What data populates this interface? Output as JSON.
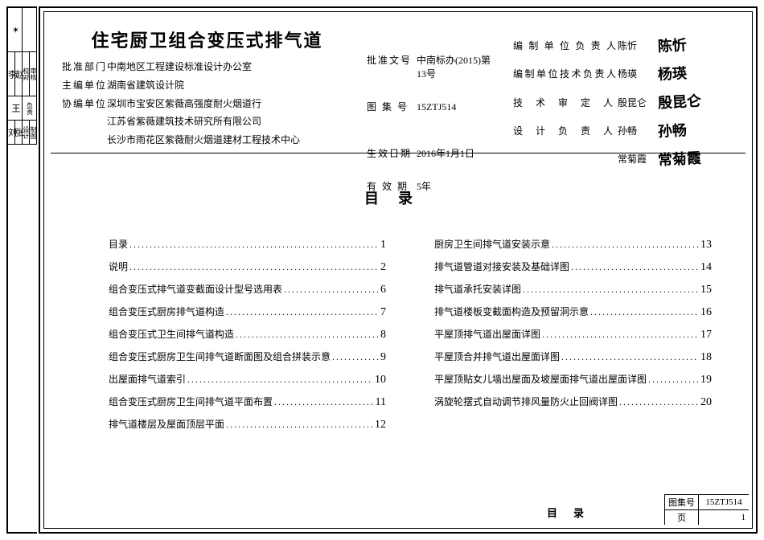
{
  "title": "住宅厨卫组合变压式排气道",
  "left_tabs": [
    {
      "sig": "杨",
      "label": "审定"
    },
    {
      "sig": "李",
      "label": "校对审核"
    },
    {
      "sig": "王",
      "label": "设计负责"
    },
    {
      "sig": "刘",
      "label": "设计制图"
    }
  ],
  "header_left": [
    {
      "label": "批准部门",
      "value": "中南地区工程建设标准设计办公室"
    },
    {
      "label": "主编单位",
      "value": "湖南省建筑设计院"
    },
    {
      "label": "协编单位",
      "value": "深圳市宝安区紫薇高强度耐火烟道行"
    },
    {
      "label": "",
      "value": "江苏省紫薇建筑技术研究所有限公司"
    },
    {
      "label": "",
      "value": "长沙市雨花区紫薇耐火烟道建材工程技术中心"
    }
  ],
  "header_mid": [
    {
      "label": "批准文号",
      "value": "中南标办(2015)第13号"
    },
    {
      "label": "图 集 号",
      "value": "15ZTJ514"
    },
    {
      "label": "生效日期",
      "value": "2016年1月1日"
    },
    {
      "label": "有 效 期",
      "value": "5年"
    }
  ],
  "header_right": [
    {
      "label": "编制单位负责人",
      "name": "陈忻",
      "sig": "陈忻"
    },
    {
      "label": "编制单位技术负责人",
      "name": "杨瑛",
      "sig": "杨瑛"
    },
    {
      "label": "技术审定人",
      "name": "殷昆仑",
      "sig": "殷昆仑"
    },
    {
      "label": "设计负责人",
      "name": "孙畅",
      "sig": "孙畅"
    },
    {
      "label": "",
      "name": "常菊霞",
      "sig": "常菊霞"
    }
  ],
  "toc_title": "目录",
  "toc_left": [
    {
      "text": "目录",
      "page": "1"
    },
    {
      "text": "说明",
      "page": "2"
    },
    {
      "text": "组合变压式排气道变截面设计型号选用表",
      "page": "6"
    },
    {
      "text": "组合变压式厨房排气道构造",
      "page": "7"
    },
    {
      "text": "组合变压式卫生间排气道构造",
      "page": "8"
    },
    {
      "text": "组合变压式厨房卫生间排气道断面图及组合拼装示意",
      "page": "9"
    },
    {
      "text": "出屋面排气道索引",
      "page": "10"
    },
    {
      "text": "组合变压式厨房卫生间排气道平面布置",
      "page": "11"
    },
    {
      "text": "排气道楼层及屋面顶层平面",
      "page": "12"
    }
  ],
  "toc_right": [
    {
      "text": "厨房卫生间排气道安装示意",
      "page": "13"
    },
    {
      "text": "排气道管道对接安装及基础详图",
      "page": "14"
    },
    {
      "text": "排气道承托安装详图",
      "page": "15"
    },
    {
      "text": "排气道楼板变截面构造及预留洞示意",
      "page": "16"
    },
    {
      "text": "平屋顶排气道出屋面详图",
      "page": "17"
    },
    {
      "text": "平屋顶合并排气道出屋面详图",
      "page": "18"
    },
    {
      "text": "平屋顶贴女儿墙出屋面及坡屋面排气道出屋面详图",
      "page": "19"
    },
    {
      "text": "涡旋轮摆式自动调节排风量防火止回阀详图",
      "page": "20"
    }
  ],
  "footer": {
    "mulu": "目录",
    "atlas_label": "图集号",
    "atlas_value": "15ZTJ514",
    "page_label": "页",
    "page_value": "1"
  }
}
